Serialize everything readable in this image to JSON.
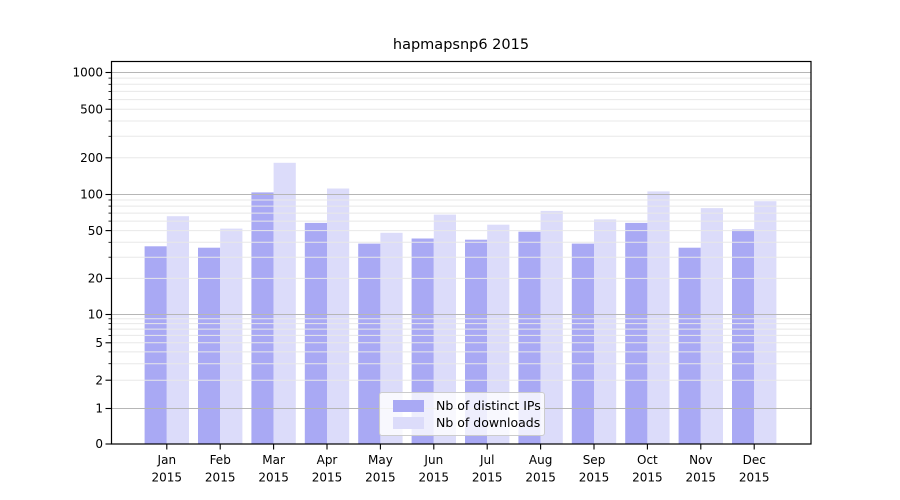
{
  "chart_data": {
    "type": "bar",
    "title": "hapmapsnp6 2015",
    "categories": [
      "Jan 2015",
      "Feb 2015",
      "Mar 2015",
      "Apr 2015",
      "May 2015",
      "Jun 2015",
      "Jul 2015",
      "Aug 2015",
      "Sep 2015",
      "Oct 2015",
      "Nov 2015",
      "Dec 2015"
    ],
    "series": [
      {
        "name": "Nb of distinct IPs",
        "color": "#a9a9f4",
        "values": [
          37,
          36,
          104,
          58,
          39,
          43,
          42,
          49,
          39,
          58,
          36,
          51
        ]
      },
      {
        "name": "Nb of downloads",
        "color": "#dcdcfa",
        "values": [
          66,
          52,
          182,
          112,
          48,
          68,
          56,
          73,
          62,
          106,
          77,
          88
        ]
      }
    ],
    "xlabel": "",
    "ylabel": "",
    "yscale": "symlog",
    "y_ticks": [
      0,
      1,
      2,
      5,
      10,
      20,
      50,
      100,
      200,
      500,
      1000
    ],
    "ylim": [
      0,
      1250
    ],
    "grid": true,
    "legend_position": "lower center"
  },
  "colors": {
    "grid_major": "#b6b6b6",
    "grid_minor": "#e8e8e8",
    "spine": "#000000",
    "background": "#ffffff"
  }
}
